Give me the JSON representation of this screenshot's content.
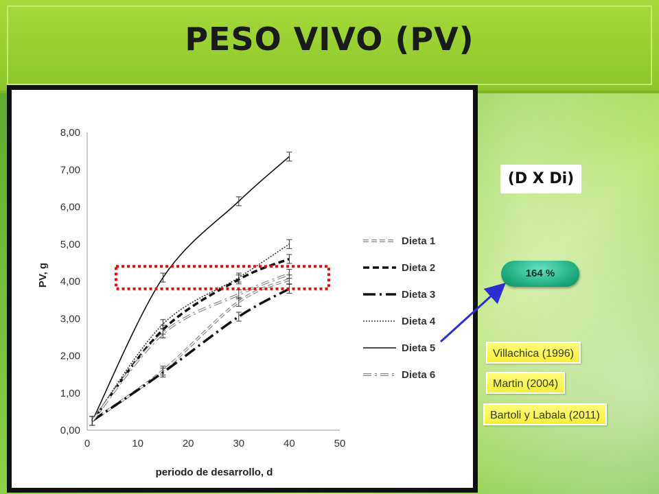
{
  "slide": {
    "title": "PESO VIVO (PV)",
    "formula": "(D X Di)",
    "percent": "164 %",
    "references": [
      "Villachica (1996)",
      "Martin (2004)",
      "Bartoli y Labala (2011)"
    ]
  },
  "colors": {
    "title_bar": "#9ccf32",
    "oval": "#1aa97a",
    "reference_box": "#f8f04a",
    "highlight_box": "#e01010",
    "arrow": "#2b2fd0"
  },
  "chart_data": {
    "type": "line",
    "xlabel": "periodo de desarrollo, d",
    "ylabel": "PV, g",
    "xlim": [
      0,
      50
    ],
    "ylim": [
      0,
      8
    ],
    "x_ticks": [
      "0",
      "10",
      "20",
      "30",
      "40",
      "50"
    ],
    "y_ticks": [
      "0,00",
      "1,00",
      "2,00",
      "3,00",
      "4,00",
      "5,00",
      "6,00",
      "7,00",
      "8,00"
    ],
    "x": [
      1,
      15,
      30,
      40
    ],
    "series": [
      {
        "name": "Dieta 1",
        "values": [
          0.25,
          1.6,
          3.45,
          4.05
        ],
        "style": "dashed-double"
      },
      {
        "name": "Dieta 2",
        "values": [
          0.25,
          2.7,
          4.05,
          4.6
        ],
        "style": "dashed-bold"
      },
      {
        "name": "Dieta 3",
        "values": [
          0.25,
          1.55,
          3.05,
          3.8
        ],
        "style": "longdash-dot"
      },
      {
        "name": "Dieta 4",
        "values": [
          0.25,
          2.85,
          4.1,
          5.0
        ],
        "style": "dotted"
      },
      {
        "name": "Dieta 5",
        "values": [
          0.25,
          4.1,
          6.15,
          7.35
        ],
        "style": "solid"
      },
      {
        "name": "Dieta 6",
        "values": [
          0.25,
          2.6,
          3.65,
          4.2
        ],
        "style": "dash-dot-double"
      }
    ],
    "error_bar": 0.12,
    "highlight_band": [
      3.8,
      4.4
    ],
    "legend_position": "right"
  }
}
